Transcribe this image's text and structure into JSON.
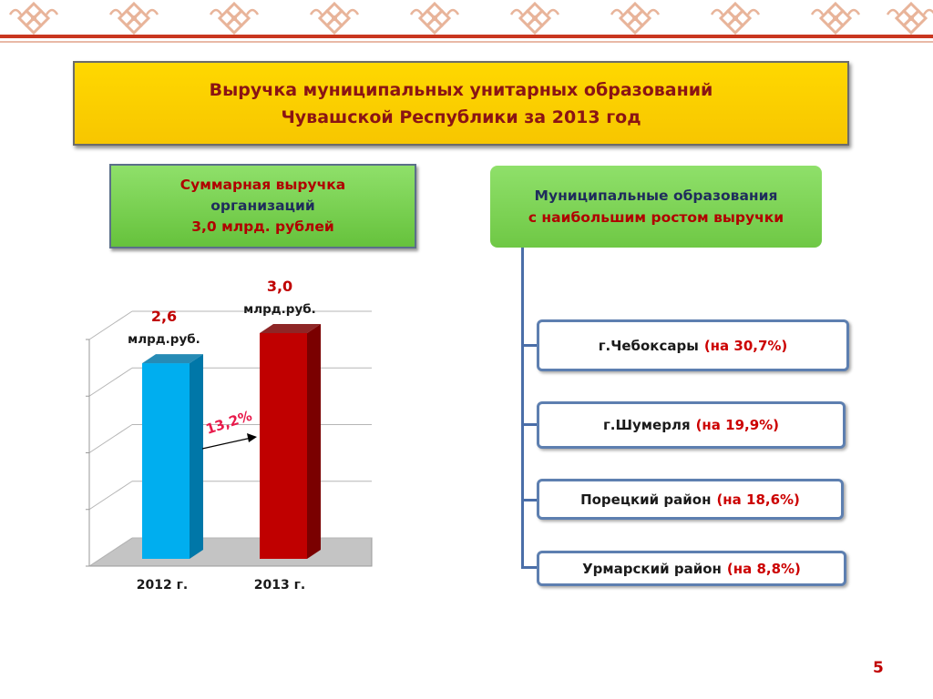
{
  "title": "Выручка муниципальных унитарных образований Чувашской Республики за 2013 год",
  "total": {
    "line1": "Суммарная выручка",
    "line2": "организаций",
    "line3": "3,0 млрд. рублей"
  },
  "municipal": {
    "header_line1": "Муниципальные образования",
    "header_line2": "с наибольшим ростом выручки",
    "items": [
      {
        "name": "г.Чебоксары",
        "growth": "(на 30,7%)"
      },
      {
        "name": "г.Шумерля",
        "growth": "(на 19,9%)"
      },
      {
        "name": "Порецкий район",
        "growth": "(на 18,6%)"
      },
      {
        "name": "Урмарский район",
        "growth": "(на 8,8%)"
      }
    ]
  },
  "chart_data": {
    "type": "bar",
    "categories": [
      "2012 г.",
      "2013 г."
    ],
    "values": [
      2.6,
      3.0
    ],
    "value_labels": [
      "2,6",
      "3,0"
    ],
    "unit_label": "млрд.руб.",
    "growth_annotation": "13,2%",
    "ylim": [
      0,
      3.45
    ],
    "grid": true,
    "colors": [
      "#00aeef",
      "#c00000"
    ]
  },
  "page_number": "5",
  "colors": {
    "accent_red": "#c00000",
    "title_bg": "#ffd800",
    "green_box": "#7ed957",
    "navy": "#1f2d5c"
  }
}
